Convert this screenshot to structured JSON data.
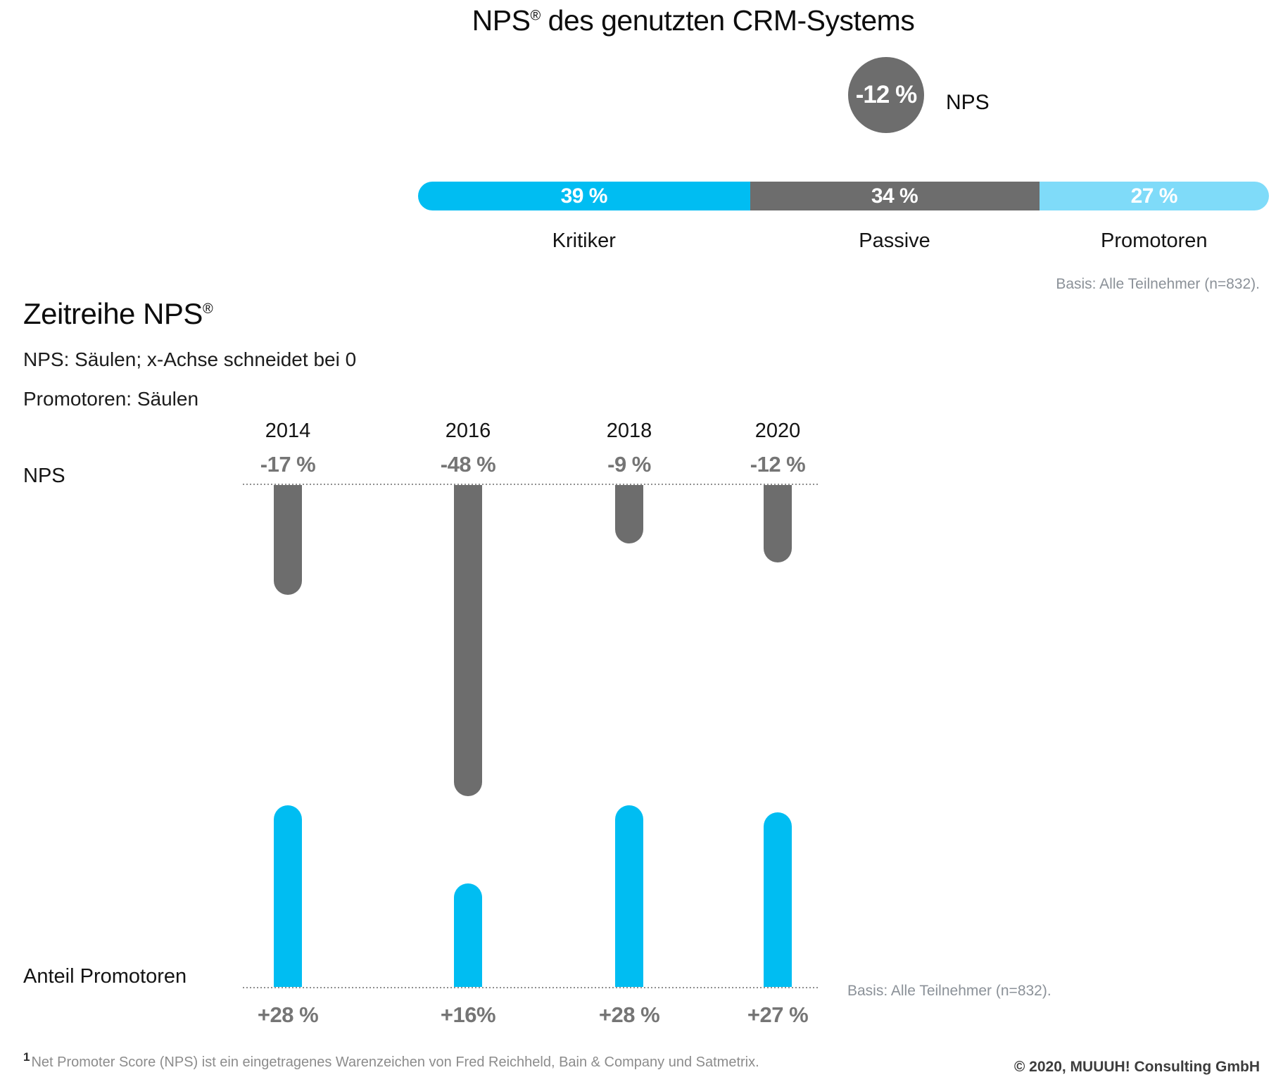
{
  "title": {
    "main": "NPS",
    "reg": "®",
    "rest": " des genutzten CRM-Systems"
  },
  "summary": {
    "score_label": "-12 %",
    "score_caption": "NPS",
    "segments": [
      {
        "label": "Kritiker",
        "value": 39,
        "value_label": "39 %",
        "color": "#00bdf2"
      },
      {
        "label": "Passive",
        "value": 34,
        "value_label": "34 %",
        "color": "#6d6d6d"
      },
      {
        "label": "Promotoren",
        "value": 27,
        "value_label": "27 %",
        "color": "#7fdbf9"
      }
    ],
    "basis_note": "Basis: Alle Teilnehmer (n=832)."
  },
  "timeseries": {
    "heading_main": "Zeitreihe NPS",
    "heading_reg": "®",
    "subtitle_1": "NPS: Säulen; x-Achse schneidet bei 0",
    "subtitle_2": "Promotoren: Säulen",
    "axis_label_nps": "NPS",
    "axis_label_promoters": "Anteil Promotoren",
    "basis_note": "Basis: Alle Teilnehmer (n=832)."
  },
  "chart_data": [
    {
      "type": "bar",
      "subtype": "stacked-horizontal",
      "title": "NPS® des genutzten CRM-Systems",
      "nps_total": -12,
      "categories": [
        "Kritiker",
        "Passive",
        "Promotoren"
      ],
      "values": [
        39,
        34,
        27
      ],
      "value_labels": [
        "39 %",
        "34 %",
        "27 %"
      ],
      "unit": "%"
    },
    {
      "type": "bar",
      "subtype": "diverging-columns",
      "title": "Zeitreihe NPS®",
      "categories": [
        "2014",
        "2016",
        "2018",
        "2020"
      ],
      "series": [
        {
          "name": "NPS",
          "values": [
            -17,
            -48,
            -9,
            -12
          ],
          "labels": [
            "-17 %",
            "-48 %",
            "-9 %",
            "-12 %"
          ],
          "color": "#6d6d6d"
        },
        {
          "name": "Anteil Promotoren",
          "values": [
            28,
            16,
            28,
            27
          ],
          "labels": [
            "+28 %",
            "+16%",
            "+28 %",
            "+27 %"
          ],
          "color": "#00bdf2"
        }
      ],
      "axis_note": "x-Achse schneidet bei 0",
      "unit": "%"
    }
  ],
  "footer": {
    "footnote_marker": "1",
    "footnote_text": "Net Promoter Score (NPS) ist ein eingetragenes Warenzeichen von Fred Reichheld, Bain & Company und Satmetrix.",
    "copyright": "© 2020, MUUUH! Consulting GmbH"
  },
  "colors": {
    "kritiker_cyan": "#00bdf2",
    "passive_gray": "#6d6d6d",
    "promotoren_light": "#7fdbf9",
    "value_gray": "#757575",
    "note_gray": "#8b9198"
  }
}
